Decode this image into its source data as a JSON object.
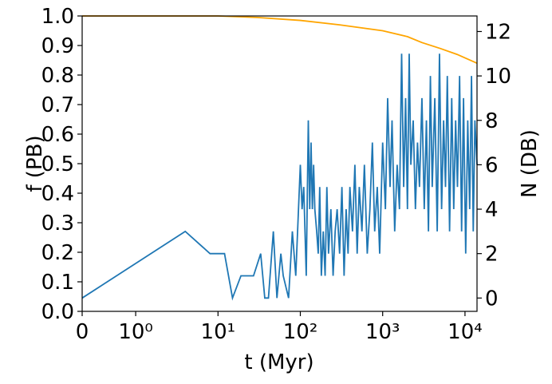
{
  "chart_data": {
    "type": "line",
    "xlabel": "t (Myr)",
    "ylabel": "f (PB)",
    "y2label": "N (DB)",
    "xscale": "symlog",
    "linthresh": 1,
    "linscale": 0.585,
    "xlim": [
      0,
      14000
    ],
    "xticks": [
      0,
      {
        "value": 1,
        "label": "10⁰"
      },
      {
        "value": 10,
        "label": "10¹"
      },
      {
        "value": 100,
        "label": "10²"
      },
      {
        "value": 1000,
        "label": "10³"
      },
      {
        "value": 10000,
        "label": "10⁴"
      }
    ],
    "ylim": [
      0,
      1
    ],
    "yticks": [
      {
        "value": 0,
        "label": "0.0"
      },
      0.1,
      0.2,
      0.3,
      0.4,
      0.5,
      0.6,
      0.7,
      0.8,
      0.9,
      {
        "value": 1,
        "label": "1.0"
      }
    ],
    "y2lim": [
      -0.6,
      12.7
    ],
    "y2ticks": [
      0,
      2,
      4,
      6,
      8,
      10,
      12
    ],
    "series": [
      {
        "color": "#ffa500",
        "axis": "y",
        "x": [
          0,
          10,
          30,
          100,
          300,
          1000,
          2000,
          3000,
          5000,
          8000,
          14000
        ],
        "values": [
          1.0,
          1.0,
          0.995,
          0.985,
          0.97,
          0.95,
          0.93,
          0.91,
          0.89,
          0.87,
          0.84
        ]
      },
      {
        "color": "#1f77b4",
        "axis": "y2",
        "x": [
          0,
          4,
          8,
          12,
          15,
          19,
          27,
          33,
          37,
          41,
          47,
          52,
          58,
          62,
          72,
          80,
          88,
          95,
          100,
          105,
          110,
          118,
          125,
          130,
          135,
          140,
          145,
          150,
          158,
          165,
          172,
          180,
          190,
          200,
          210,
          220,
          235,
          250,
          265,
          280,
          300,
          320,
          340,
          360,
          380,
          400,
          430,
          460,
          490,
          520,
          560,
          600,
          650,
          700,
          750,
          800,
          860,
          920,
          1000,
          1080,
          1150,
          1230,
          1300,
          1400,
          1500,
          1600,
          1700,
          1800,
          1900,
          2000,
          2100,
          2200,
          2350,
          2500,
          2650,
          2800,
          3000,
          3200,
          3400,
          3600,
          3800,
          4000,
          4300,
          4600,
          4900,
          5200,
          5500,
          5800,
          6100,
          6500,
          6900,
          7300,
          7700,
          8100,
          8600,
          9100,
          9600,
          10200,
          10800,
          11400,
          12000,
          12600,
          13200,
          14000
        ],
        "values": [
          0,
          3,
          2,
          2,
          0,
          1,
          1,
          2,
          0,
          0,
          3,
          0,
          2,
          1,
          0,
          3,
          1,
          4,
          6,
          4,
          5,
          1,
          8,
          4,
          7,
          4,
          6,
          4,
          3,
          2,
          5,
          1,
          3,
          1,
          5,
          2,
          4,
          1,
          3,
          4,
          2,
          5,
          1,
          4,
          2,
          5,
          3,
          6,
          2,
          5,
          3,
          6,
          2,
          4,
          7,
          3,
          5,
          2,
          7,
          4,
          9,
          5,
          8,
          3,
          6,
          4,
          11,
          5,
          9,
          4,
          11,
          6,
          8,
          4,
          7,
          5,
          9,
          4,
          8,
          3,
          10,
          5,
          9,
          3,
          11,
          4,
          8,
          5,
          10,
          3,
          9,
          4,
          8,
          5,
          10,
          3,
          9,
          2,
          8,
          4,
          10,
          3,
          8,
          6
        ]
      }
    ]
  }
}
